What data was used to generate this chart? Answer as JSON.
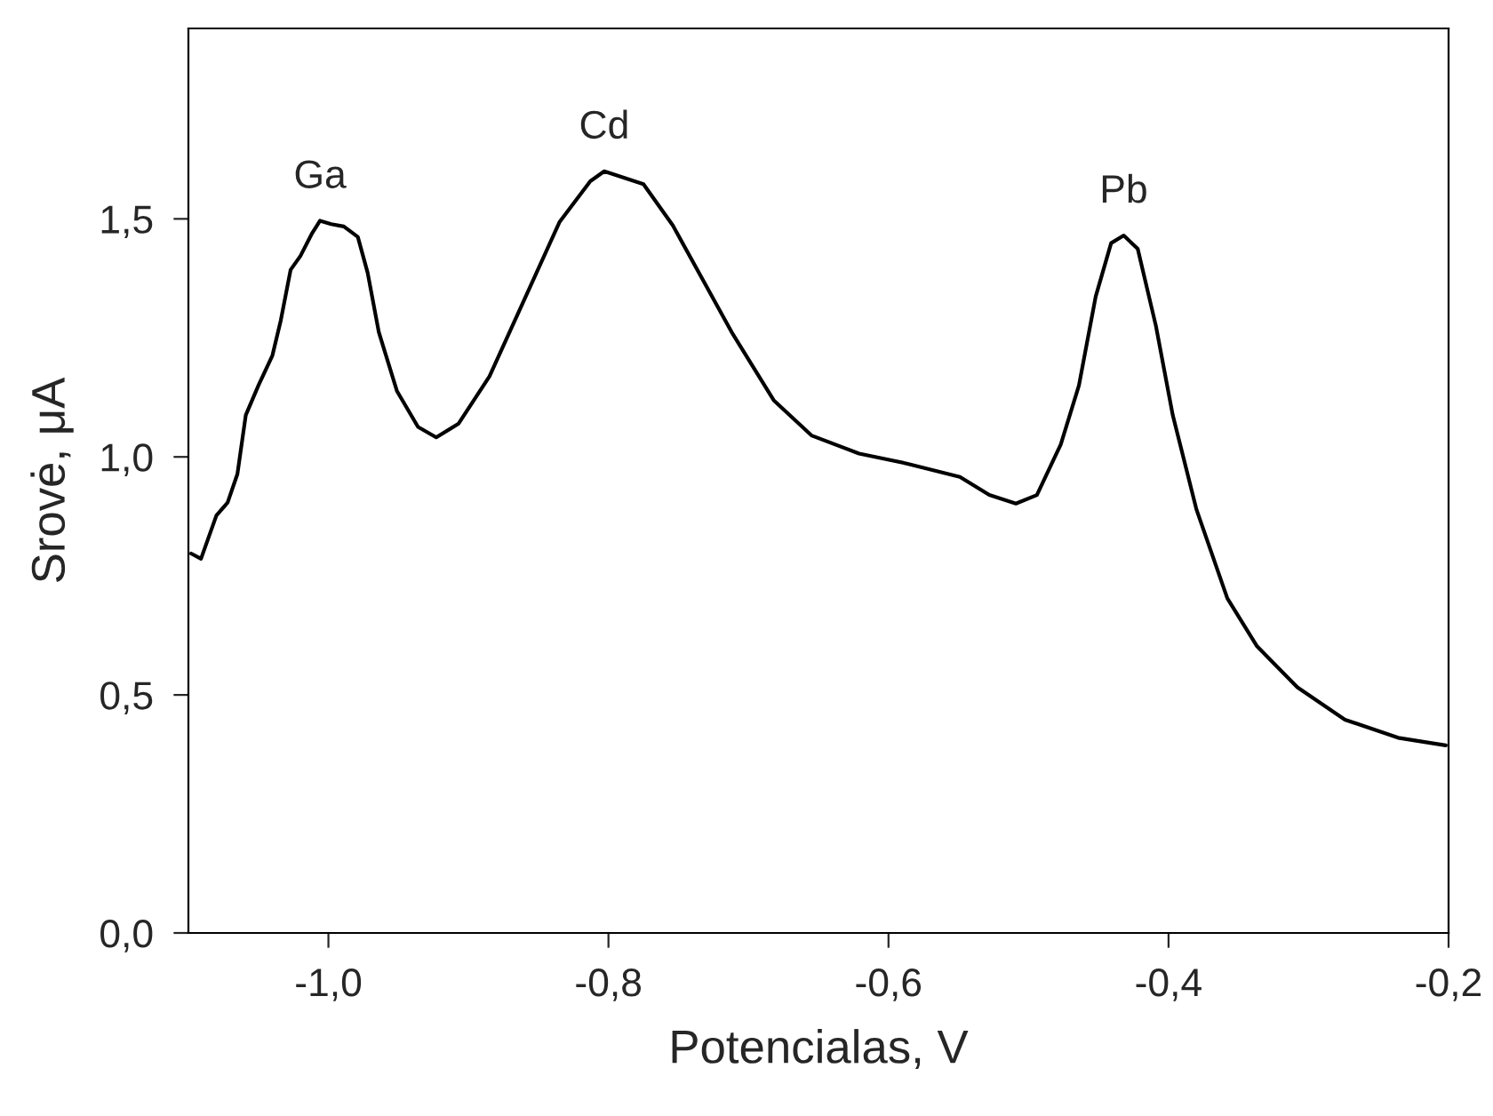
{
  "chart_data": {
    "type": "line",
    "xlabel": "Potencialas, V",
    "ylabel": "Srovė, μA",
    "series": [
      {
        "color": "#000000",
        "x": [
          -1.098,
          -1.091,
          -1.08,
          -1.072,
          -1.065,
          -1.059,
          -1.05,
          -1.04,
          -1.034,
          -1.027,
          -1.02,
          -1.012,
          -1.006,
          -0.998,
          -0.989,
          -0.979,
          -0.972,
          -0.964,
          -0.951,
          -0.936,
          -0.923,
          -0.907,
          -0.885,
          -0.86,
          -0.835,
          -0.813,
          -0.803,
          -0.775,
          -0.754,
          -0.733,
          -0.712,
          -0.682,
          -0.655,
          -0.621,
          -0.587,
          -0.549,
          -0.528,
          -0.509,
          -0.494,
          -0.477,
          -0.464,
          -0.452,
          -0.441,
          -0.432,
          -0.422,
          -0.409,
          -0.397,
          -0.38,
          -0.358,
          -0.337,
          -0.308,
          -0.274,
          -0.236,
          -0.202
        ],
        "values": [
          0.797,
          0.786,
          0.877,
          0.904,
          0.964,
          1.088,
          1.15,
          1.213,
          1.287,
          1.393,
          1.422,
          1.468,
          1.496,
          1.489,
          1.484,
          1.462,
          1.387,
          1.262,
          1.138,
          1.063,
          1.041,
          1.07,
          1.169,
          1.331,
          1.493,
          1.579,
          1.6,
          1.573,
          1.486,
          1.374,
          1.262,
          1.119,
          1.045,
          1.007,
          0.986,
          0.958,
          0.92,
          0.902,
          0.92,
          1.026,
          1.15,
          1.337,
          1.449,
          1.465,
          1.437,
          1.275,
          1.088,
          0.889,
          0.703,
          0.603,
          0.516,
          0.448,
          0.41,
          0.394
        ]
      }
    ],
    "annotations": [
      {
        "text": "Ga",
        "x": -1.006,
        "y": 1.496
      },
      {
        "text": "Cd",
        "x": -0.803,
        "y": 1.6
      },
      {
        "text": "Pb",
        "x": -0.432,
        "y": 1.465
      }
    ],
    "xlim": [
      -1.1,
      -0.2
    ],
    "xticks": [
      {
        "value": -1.0,
        "label": "-1,0"
      },
      {
        "value": -0.8,
        "label": "-0,8"
      },
      {
        "value": -0.6,
        "label": "-0,6"
      },
      {
        "value": -0.4,
        "label": "-0,4"
      },
      {
        "value": -0.2,
        "label": "-0,2"
      }
    ],
    "ylim": [
      0,
      1.9
    ],
    "yticks": [
      {
        "value": 0,
        "label": "0,0"
      },
      {
        "value": 0.5,
        "label": "0,5"
      },
      {
        "value": 1.0,
        "label": "1,0"
      },
      {
        "value": 1.5,
        "label": "1,5"
      }
    ],
    "grid": false,
    "legend": false
  }
}
